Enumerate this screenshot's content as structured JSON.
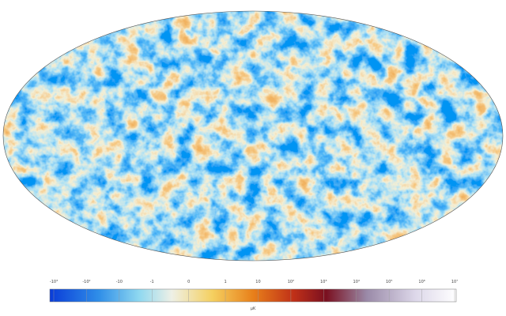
{
  "colorbar": {
    "range": [
      -1000,
      10000000
    ],
    "ticks": [
      {
        "value": -1000,
        "label": "-10³"
      },
      {
        "value": -100,
        "label": "-10²"
      },
      {
        "value": -10,
        "label": "-10"
      },
      {
        "value": -1,
        "label": "-1"
      },
      0,
      1,
      10,
      {
        "value": 100,
        "label": "10²"
      },
      {
        "value": 1000,
        "label": "10³"
      },
      {
        "value": 10000,
        "label": "10⁴"
      },
      {
        "value": 100000,
        "label": "10⁵"
      },
      {
        "value": 1000000,
        "label": "10⁶"
      },
      {
        "value": 10000000,
        "label": "10⁷"
      }
    ],
    "unit": "μK"
  }
}
